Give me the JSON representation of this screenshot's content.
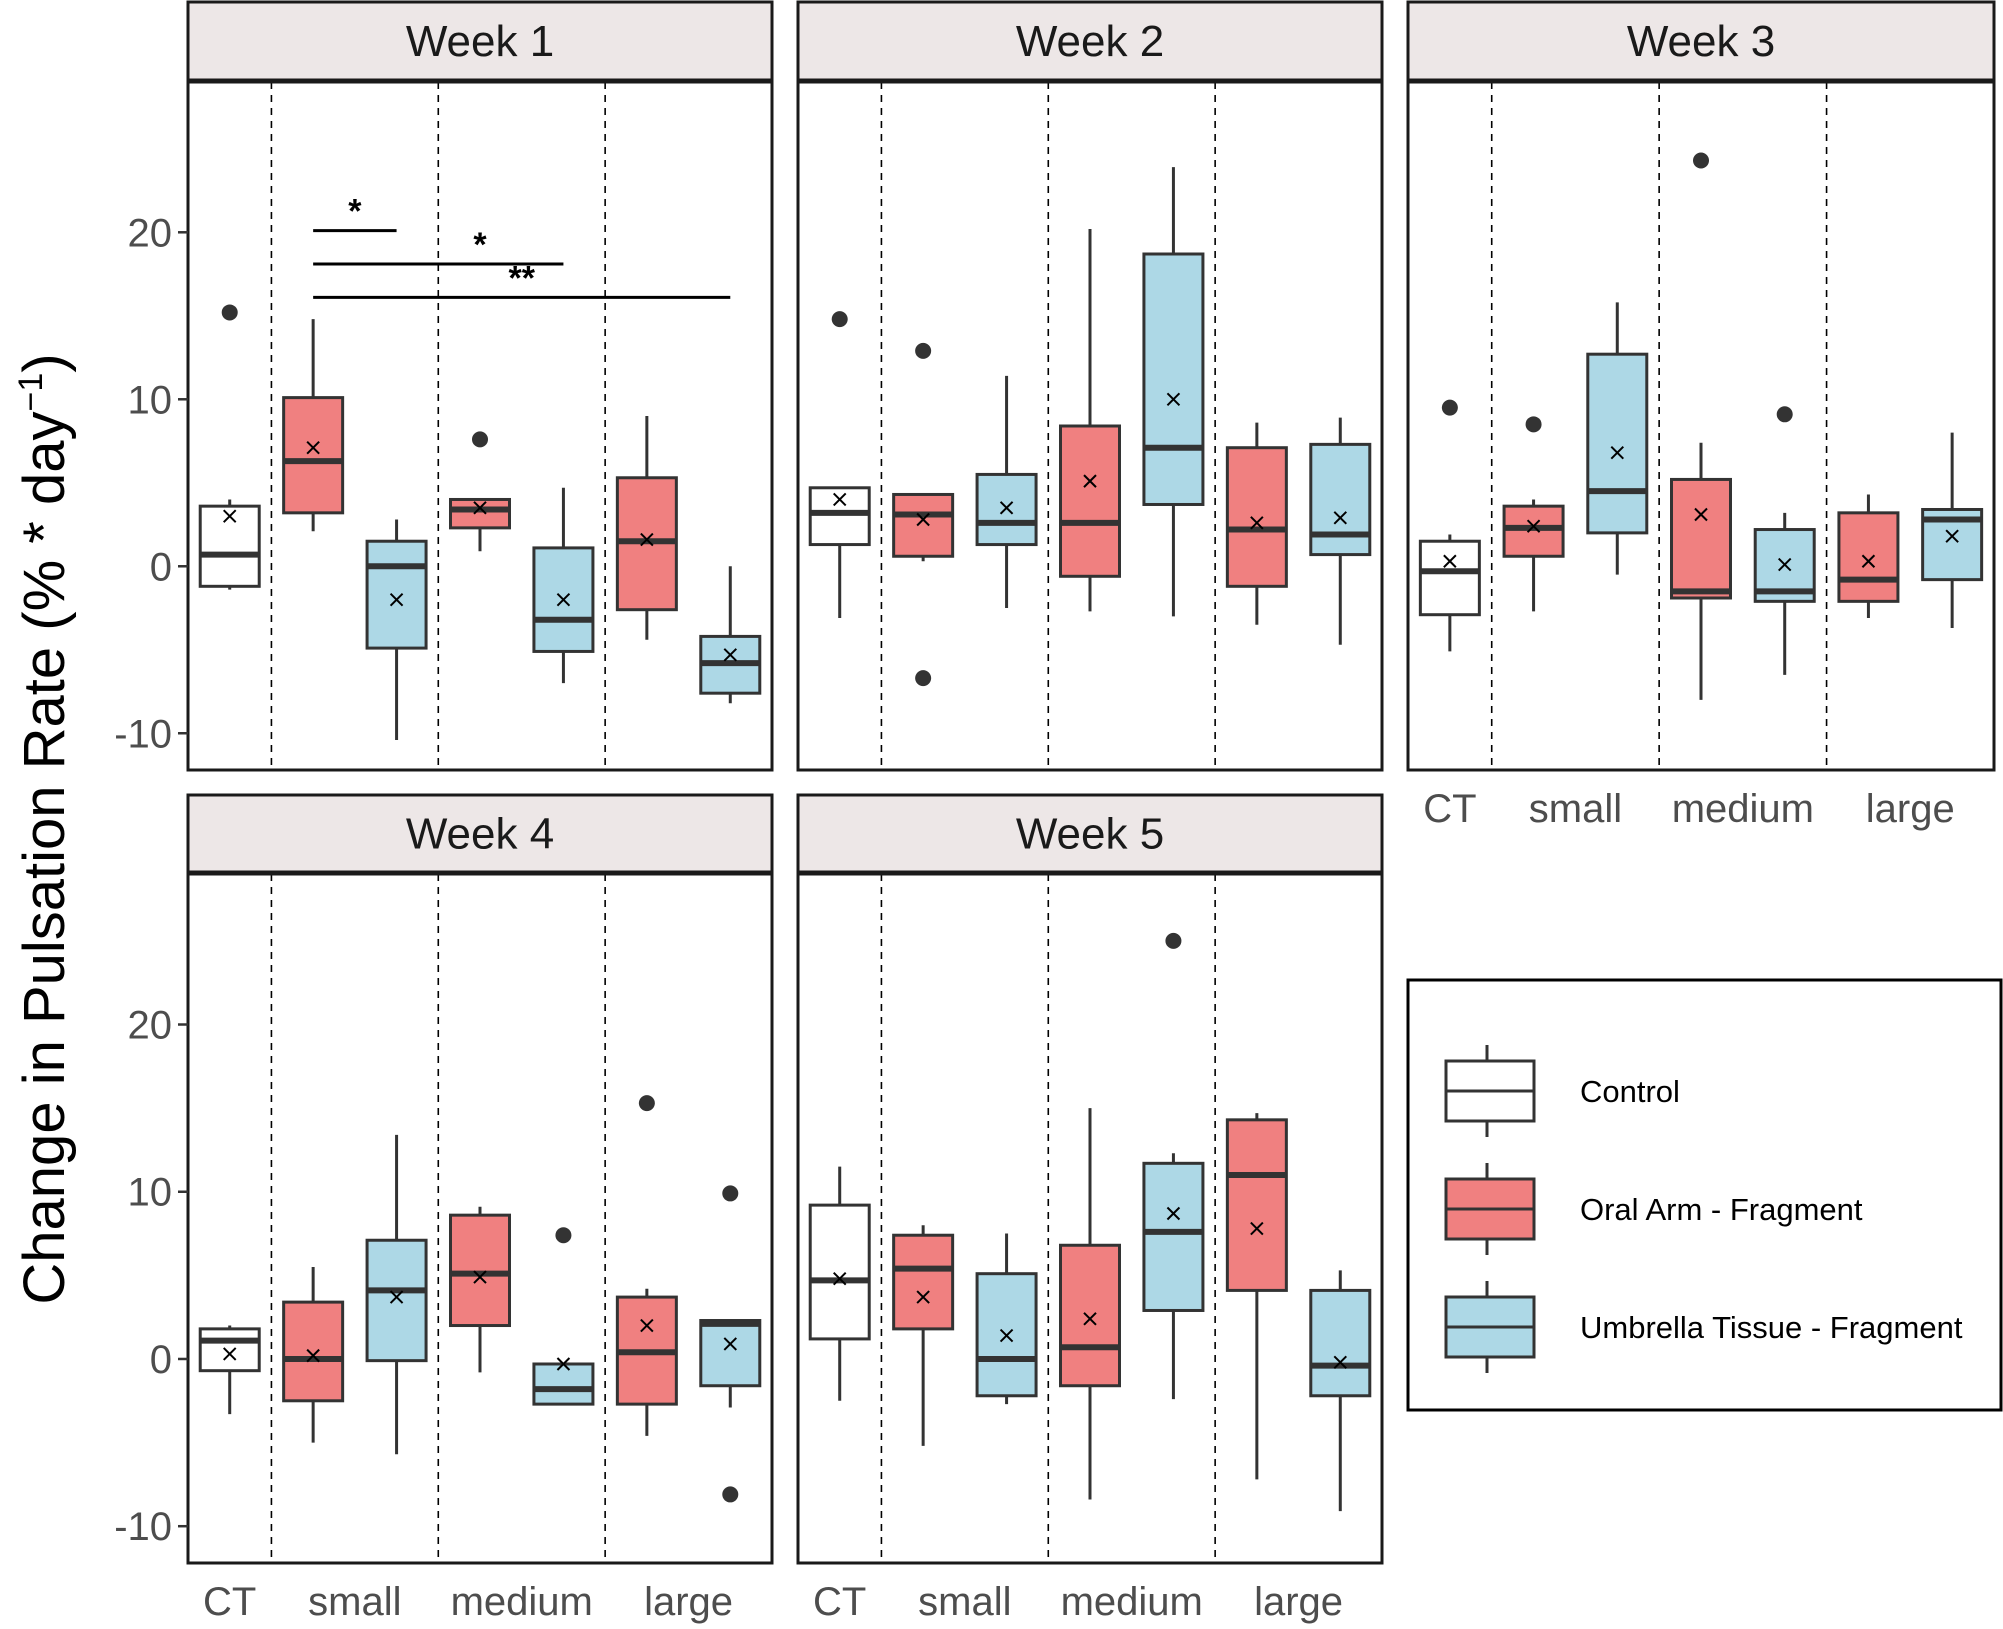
{
  "chart_data": {
    "type": "box",
    "y_label": "Change in Pulsation Rate (% * day",
    "y_label_sup": "−1",
    "y_label_close": ")",
    "ylim": [
      -12.2,
      29
    ],
    "y_ticks": [
      -10,
      0,
      10,
      20
    ],
    "y_tick_labels": [
      "-10",
      "0",
      "10",
      "20"
    ],
    "x_groups": [
      "CT",
      "small",
      "medium",
      "large"
    ],
    "legend": [
      {
        "name": "Control",
        "color": "#ffffff"
      },
      {
        "name": "Oral Arm - Fragment",
        "color": "#f08080"
      },
      {
        "name": "Umbrella Tissue - Fragment",
        "color": "#add8e6"
      }
    ],
    "panels": [
      {
        "title": "Week 1",
        "boxes": [
          {
            "group": "CT",
            "series": "Control",
            "q1": -1.2,
            "median": 0.7,
            "q3": 3.6,
            "low": -1.4,
            "high": 4.0,
            "mean": 3.0,
            "outliers": [
              15.2
            ]
          },
          {
            "group": "small",
            "series": "Oral Arm - Fragment",
            "q1": 3.2,
            "median": 6.3,
            "q3": 10.1,
            "low": 2.1,
            "high": 14.8,
            "mean": 7.1,
            "outliers": []
          },
          {
            "group": "small",
            "series": "Umbrella Tissue - Fragment",
            "q1": -4.9,
            "median": 0.0,
            "q3": 1.5,
            "low": -10.4,
            "high": 2.8,
            "mean": -2.0,
            "outliers": []
          },
          {
            "group": "medium",
            "series": "Oral Arm - Fragment",
            "q1": 2.3,
            "median": 3.4,
            "q3": 4.0,
            "low": 0.9,
            "high": 4.0,
            "mean": 3.5,
            "outliers": [
              7.6
            ]
          },
          {
            "group": "medium",
            "series": "Umbrella Tissue - Fragment",
            "q1": -5.1,
            "median": -3.2,
            "q3": 1.1,
            "low": -7.0,
            "high": 4.7,
            "mean": -2.0,
            "outliers": []
          },
          {
            "group": "large",
            "series": "Oral Arm - Fragment",
            "q1": -2.6,
            "median": 1.5,
            "q3": 5.3,
            "low": -4.4,
            "high": 9.0,
            "mean": 1.6,
            "outliers": []
          },
          {
            "group": "large",
            "series": "Umbrella Tissue - Fragment",
            "q1": -7.6,
            "median": -5.8,
            "q3": -4.2,
            "low": -8.2,
            "high": 0.0,
            "mean": -5.3,
            "outliers": []
          }
        ],
        "significance": [
          {
            "label": "*",
            "from": 1,
            "to": 2,
            "y": 20.1,
            "label_x": 1.5
          },
          {
            "label": "*",
            "from": 1,
            "to": 4,
            "y": 18.1,
            "label_x": 3.0
          },
          {
            "label": "**",
            "from": 1,
            "to": 6,
            "y": 16.1,
            "label_x": 3.5
          }
        ]
      },
      {
        "title": "Week 2",
        "boxes": [
          {
            "group": "CT",
            "series": "Control",
            "q1": 1.3,
            "median": 3.2,
            "q3": 4.7,
            "low": -3.1,
            "high": 4.7,
            "mean": 4.0,
            "outliers": [
              14.8
            ]
          },
          {
            "group": "small",
            "series": "Oral Arm - Fragment",
            "q1": 0.6,
            "median": 3.1,
            "q3": 4.3,
            "low": 0.3,
            "high": 4.3,
            "mean": 2.8,
            "outliers": [
              12.9,
              -6.7
            ]
          },
          {
            "group": "small",
            "series": "Umbrella Tissue - Fragment",
            "q1": 1.3,
            "median": 2.6,
            "q3": 5.5,
            "low": -2.5,
            "high": 11.4,
            "mean": 3.5,
            "outliers": []
          },
          {
            "group": "medium",
            "series": "Oral Arm - Fragment",
            "q1": -0.6,
            "median": 2.6,
            "q3": 8.4,
            "low": -2.7,
            "high": 20.2,
            "mean": 5.1,
            "outliers": []
          },
          {
            "group": "medium",
            "series": "Umbrella Tissue - Fragment",
            "q1": 3.7,
            "median": 7.1,
            "q3": 18.7,
            "low": -3.0,
            "high": 23.9,
            "mean": 10.0,
            "outliers": []
          },
          {
            "group": "large",
            "series": "Oral Arm - Fragment",
            "q1": -1.2,
            "median": 2.2,
            "q3": 7.1,
            "low": -3.5,
            "high": 8.6,
            "mean": 2.6,
            "outliers": []
          },
          {
            "group": "large",
            "series": "Umbrella Tissue - Fragment",
            "q1": 0.7,
            "median": 1.9,
            "q3": 7.3,
            "low": -4.7,
            "high": 8.9,
            "mean": 2.9,
            "outliers": []
          }
        ],
        "significance": []
      },
      {
        "title": "Week 3",
        "boxes": [
          {
            "group": "CT",
            "series": "Control",
            "q1": -2.9,
            "median": -0.3,
            "q3": 1.5,
            "low": -5.1,
            "high": 1.9,
            "mean": 0.3,
            "outliers": [
              9.5
            ]
          },
          {
            "group": "small",
            "series": "Oral Arm - Fragment",
            "q1": 0.6,
            "median": 2.3,
            "q3": 3.6,
            "low": -2.7,
            "high": 4.0,
            "mean": 2.4,
            "outliers": [
              8.5
            ]
          },
          {
            "group": "small",
            "series": "Umbrella Tissue - Fragment",
            "q1": 2.0,
            "median": 4.5,
            "q3": 12.7,
            "low": -0.5,
            "high": 15.8,
            "mean": 6.8,
            "outliers": []
          },
          {
            "group": "medium",
            "series": "Oral Arm - Fragment",
            "q1": -1.9,
            "median": -1.5,
            "q3": 5.2,
            "low": -8.0,
            "high": 7.4,
            "mean": 3.1,
            "outliers": [
              24.3
            ]
          },
          {
            "group": "medium",
            "series": "Umbrella Tissue - Fragment",
            "q1": -2.1,
            "median": -1.5,
            "q3": 2.2,
            "low": -6.5,
            "high": 3.2,
            "mean": 0.1,
            "outliers": [
              9.1
            ]
          },
          {
            "group": "large",
            "series": "Oral Arm - Fragment",
            "q1": -2.1,
            "median": -0.8,
            "q3": 3.2,
            "low": -3.1,
            "high": 4.3,
            "mean": 0.3,
            "outliers": []
          },
          {
            "group": "large",
            "series": "Umbrella Tissue - Fragment",
            "q1": -0.8,
            "median": 2.8,
            "q3": 3.4,
            "low": -3.7,
            "high": 8.0,
            "mean": 1.8,
            "outliers": []
          }
        ],
        "significance": []
      },
      {
        "title": "Week 4",
        "boxes": [
          {
            "group": "CT",
            "series": "Control",
            "q1": -0.7,
            "median": 1.1,
            "q3": 1.8,
            "low": -3.3,
            "high": 2.0,
            "mean": 0.3,
            "outliers": []
          },
          {
            "group": "small",
            "series": "Oral Arm - Fragment",
            "q1": -2.5,
            "median": 0.0,
            "q3": 3.4,
            "low": -5.0,
            "high": 5.5,
            "mean": 0.2,
            "outliers": []
          },
          {
            "group": "small",
            "series": "Umbrella Tissue - Fragment",
            "q1": -0.1,
            "median": 4.1,
            "q3": 7.1,
            "low": -5.7,
            "high": 13.4,
            "mean": 3.7,
            "outliers": []
          },
          {
            "group": "medium",
            "series": "Oral Arm - Fragment",
            "q1": 2.0,
            "median": 5.1,
            "q3": 8.6,
            "low": -0.8,
            "high": 9.1,
            "mean": 4.9,
            "outliers": []
          },
          {
            "group": "medium",
            "series": "Umbrella Tissue - Fragment",
            "q1": -2.7,
            "median": -1.8,
            "q3": -0.3,
            "low": -2.7,
            "high": -0.3,
            "mean": -0.3,
            "outliers": [
              7.4
            ]
          },
          {
            "group": "large",
            "series": "Oral Arm - Fragment",
            "q1": -2.7,
            "median": 0.4,
            "q3": 3.7,
            "low": -4.6,
            "high": 4.2,
            "mean": 2.0,
            "outliers": [
              15.3
            ]
          },
          {
            "group": "large",
            "series": "Umbrella Tissue - Fragment",
            "q1": -1.6,
            "median": 2.1,
            "q3": 2.3,
            "low": -2.9,
            "high": 2.3,
            "mean": 0.9,
            "outliers": [
              9.9,
              -8.1
            ]
          }
        ],
        "significance": []
      },
      {
        "title": "Week 5",
        "boxes": [
          {
            "group": "CT",
            "series": "Control",
            "q1": 1.2,
            "median": 4.7,
            "q3": 9.2,
            "low": -2.5,
            "high": 11.5,
            "mean": 4.8,
            "outliers": []
          },
          {
            "group": "small",
            "series": "Oral Arm - Fragment",
            "q1": 1.8,
            "median": 5.4,
            "q3": 7.4,
            "low": -5.2,
            "high": 8.0,
            "mean": 3.7,
            "outliers": []
          },
          {
            "group": "small",
            "series": "Umbrella Tissue - Fragment",
            "q1": -2.2,
            "median": 0.0,
            "q3": 5.1,
            "low": -2.7,
            "high": 7.5,
            "mean": 1.4,
            "outliers": []
          },
          {
            "group": "medium",
            "series": "Oral Arm - Fragment",
            "q1": -1.6,
            "median": 0.7,
            "q3": 6.8,
            "low": -8.4,
            "high": 15.0,
            "mean": 2.4,
            "outliers": []
          },
          {
            "group": "medium",
            "series": "Umbrella Tissue - Fragment",
            "q1": 2.9,
            "median": 7.6,
            "q3": 11.7,
            "low": -2.4,
            "high": 12.3,
            "mean": 8.7,
            "outliers": [
              25.0
            ]
          },
          {
            "group": "large",
            "series": "Oral Arm - Fragment",
            "q1": 4.1,
            "median": 11.0,
            "q3": 14.3,
            "low": -7.2,
            "high": 14.7,
            "mean": 7.8,
            "outliers": []
          },
          {
            "group": "large",
            "series": "Umbrella Tissue - Fragment",
            "q1": -2.2,
            "median": -0.4,
            "q3": 4.1,
            "low": -9.1,
            "high": 5.3,
            "mean": -0.2,
            "outliers": []
          }
        ],
        "significance": []
      }
    ]
  }
}
